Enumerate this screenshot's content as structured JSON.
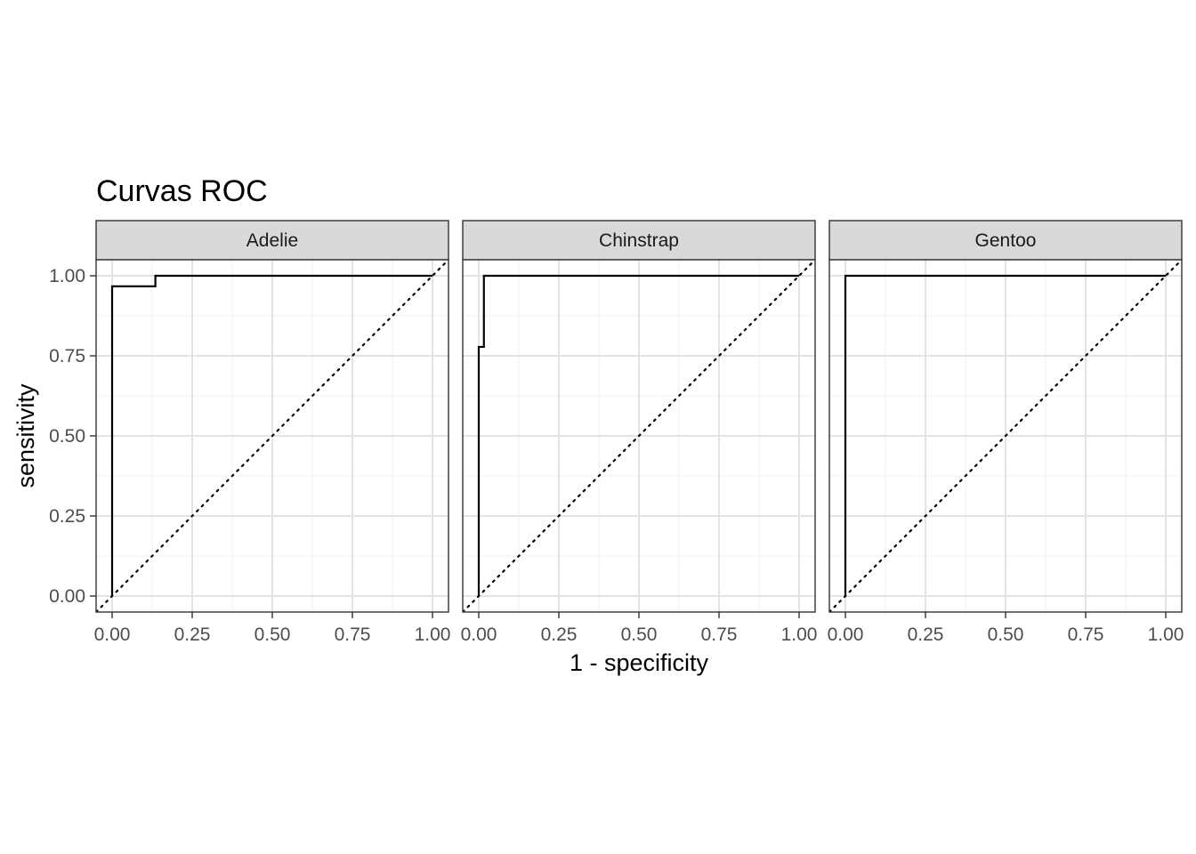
{
  "chart_data": {
    "type": "line",
    "title": "Curvas ROC",
    "xlabel": "1 - specificity",
    "ylabel": "sensitivity",
    "xlim": [
      -0.05,
      1.05
    ],
    "ylim": [
      -0.05,
      1.05
    ],
    "x_ticks": [
      "0.00",
      "0.25",
      "0.50",
      "0.75",
      "1.00"
    ],
    "y_ticks": [
      "0.00",
      "0.25",
      "0.50",
      "0.75",
      "1.00"
    ],
    "grid": true,
    "reference_line": "diagonal dotted",
    "panels": [
      {
        "name": "Adelie",
        "x": [
          0,
          0,
          0.135,
          0.135,
          1.0
        ],
        "y": [
          0,
          0.967,
          0.967,
          1.0,
          1.0
        ]
      },
      {
        "name": "Chinstrap",
        "x": [
          0,
          0,
          0.016,
          0.016,
          1.0
        ],
        "y": [
          0,
          0.778,
          0.778,
          1.0,
          1.0
        ]
      },
      {
        "name": "Gentoo",
        "x": [
          0,
          0,
          1.0
        ],
        "y": [
          0,
          1.0,
          1.0
        ]
      }
    ]
  }
}
